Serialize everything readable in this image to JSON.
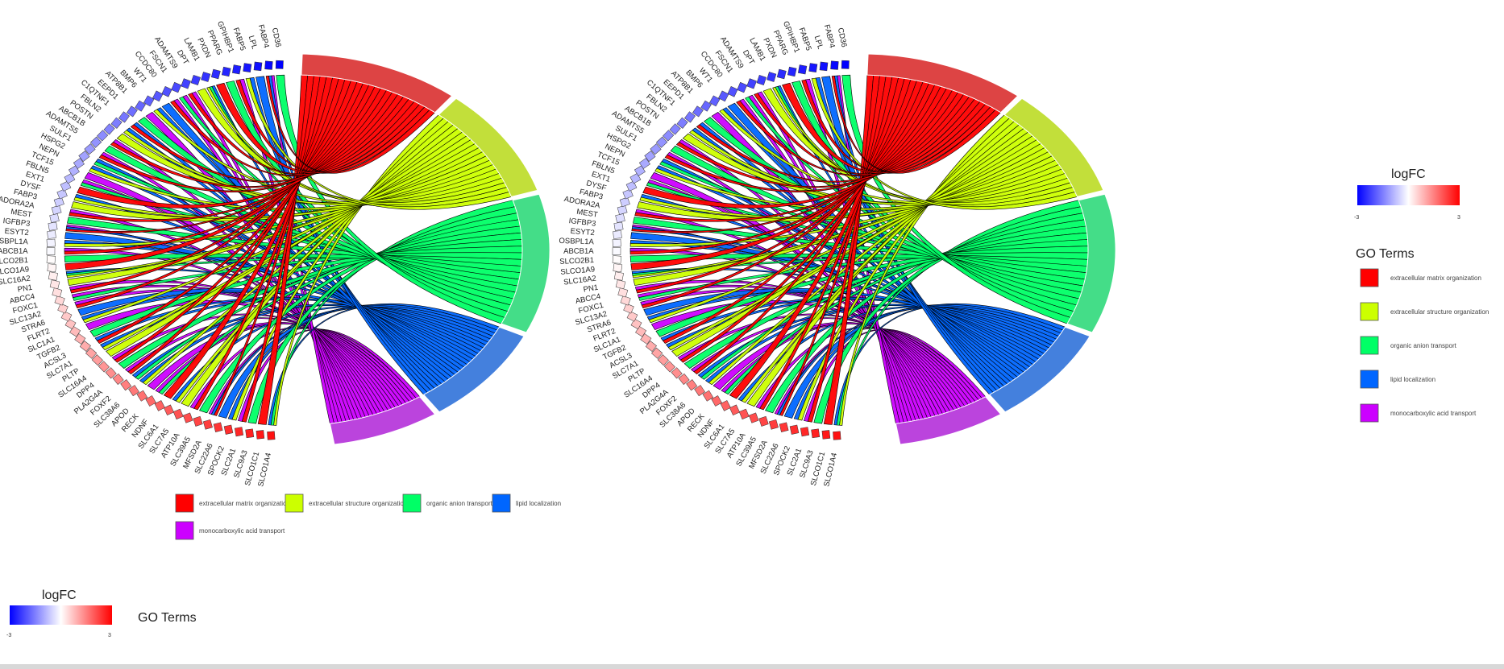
{
  "chart_data": [
    {
      "type": "chord",
      "genes": [
        "SLCO1A4",
        "SLCO1C1",
        "SLC9A3",
        "SLC2A1",
        "SPOCK2",
        "SLC22A6",
        "MFSD2A",
        "SLC39A5",
        "ATP10A",
        "SLC7A5",
        "SLC6A1",
        "NDNF",
        "RECK",
        "APOD",
        "SLC38A6",
        "FOXF2",
        "PLA2G4A",
        "DPP4",
        "SLC16A4",
        "PLTP",
        "SLC7A1",
        "ACSL3",
        "TGFB2",
        "SLC1A1",
        "FLRT2",
        "STRA6",
        "SLC13A2",
        "FOXC1",
        "ABCC4",
        "PN1",
        "SLC16A2",
        "SLCO1A9",
        "SLCO2B1",
        "ABCB1A",
        "OSBPL1A",
        "ESYT2",
        "IGFBP3",
        "MEST",
        "ADORA2A",
        "FABP3",
        "DYSF",
        "EXT1",
        "FBLN5",
        "TCF15",
        "NEPN",
        "HSPG2",
        "SULF1",
        "ADAMTS5",
        "ABCB1B",
        "POSTN",
        "FBLN2",
        "C1QTNF1",
        "EEPD1",
        "ATP8B1",
        "BMP6",
        "WT1",
        "CCDC80",
        "FSCN1",
        "ADAMTS9",
        "DPT",
        "LAMB1",
        "PXDN",
        "PPARG",
        "GPIHBP1",
        "FABP5",
        "LPL",
        "FABP4",
        "CD36"
      ],
      "go_terms": [
        {
          "name": "extracellular matrix organization",
          "color": "#ff0000",
          "sector_color": "#dd4444"
        },
        {
          "name": "extracellular structure organization",
          "color": "#ccff00",
          "sector_color": "#c2df3a"
        },
        {
          "name": "organic anion transport",
          "color": "#00ff66",
          "sector_color": "#44dd88"
        },
        {
          "name": "lipid localization",
          "color": "#0066ff",
          "sector_color": "#4480dd"
        },
        {
          "name": "monocarboxylic acid transport",
          "color": "#cc00ff",
          "sector_color": "#bb44dd"
        }
      ],
      "logfc_scale": {
        "min": -3,
        "max": 3,
        "low_color": "#0000ff",
        "mid_color": "#ffffff",
        "high_color": "#ff0000"
      },
      "legend_placement": "bottom"
    },
    {
      "type": "chord",
      "same_data_as_first": true,
      "legend_placement": "right"
    }
  ],
  "legend": {
    "logfc_title": "logFC",
    "logfc_min_label": "-3",
    "logfc_max_label": "3",
    "go_title": "GO Terms"
  }
}
